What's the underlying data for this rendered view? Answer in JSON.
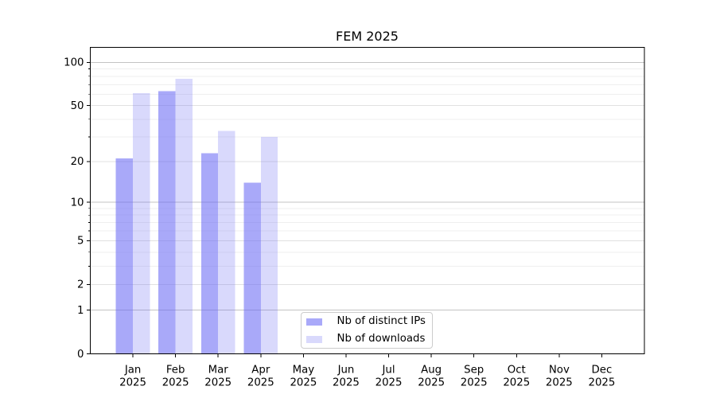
{
  "chart_data": {
    "type": "bar",
    "title": "FEM 2025",
    "categories": [
      "Jan",
      "Feb",
      "Mar",
      "Apr",
      "May",
      "Jun",
      "Jul",
      "Aug",
      "Sep",
      "Oct",
      "Nov",
      "Dec"
    ],
    "x_year_label": "2025",
    "series": [
      {
        "name": "Nb of distinct IPs",
        "color": "#6666f5",
        "fill_opacity": 0.56,
        "values": [
          21,
          63,
          23,
          14,
          0,
          0,
          0,
          0,
          0,
          0,
          0,
          0
        ]
      },
      {
        "name": "Nb of downloads",
        "color": "#6666f5",
        "fill_opacity": 0.25,
        "values": [
          61,
          77,
          33,
          30,
          0,
          0,
          0,
          0,
          0,
          0,
          0,
          0
        ]
      }
    ],
    "yscale": "log1p",
    "ylim": [
      0,
      127
    ],
    "yticks": [
      0,
      1,
      2,
      5,
      10,
      20,
      50,
      100
    ],
    "yticks_minor": [
      3,
      4,
      6,
      7,
      8,
      9,
      30,
      40,
      60,
      70,
      80,
      90
    ],
    "grid": "horizontal",
    "legend_position": "lower-center"
  },
  "colors": {
    "grid_major": "#c3c3c3",
    "grid_mid": "#e1e1e1",
    "grid_minor": "#efefef",
    "spine": "#000000",
    "tick": "#000000",
    "legend_border": "#cccccc"
  }
}
